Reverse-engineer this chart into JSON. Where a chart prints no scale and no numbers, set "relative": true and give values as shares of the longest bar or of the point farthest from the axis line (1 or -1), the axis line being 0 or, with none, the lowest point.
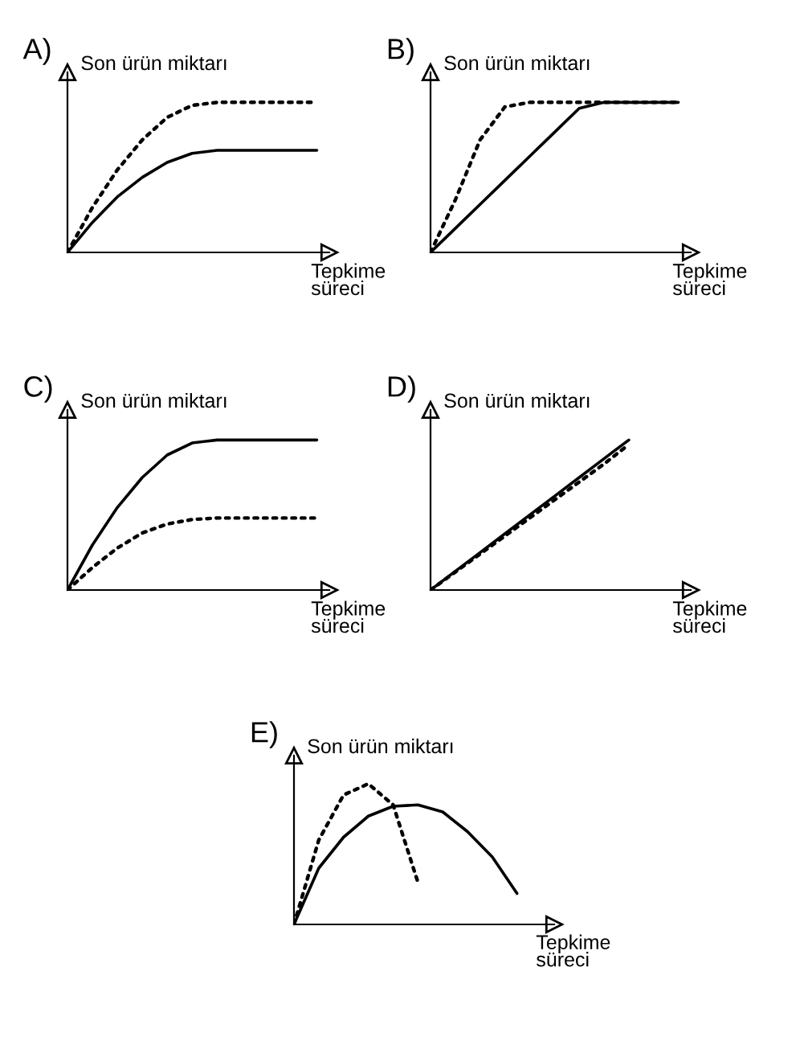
{
  "chart_data": [
    {
      "type": "line",
      "title": "A)",
      "ylabel": "Son ürün miktarı",
      "xlabel": "Tepkime\nsüreci",
      "relative": true,
      "grid": false,
      "legend": false,
      "marker": "none",
      "categories": [
        null,
        null,
        null,
        null,
        null,
        null,
        null,
        null,
        null,
        null,
        null
      ],
      "series": [
        {
          "color": "#000000",
          "line_style": "solid",
          "values": [
            0,
            0.2,
            0.37,
            0.5,
            0.6,
            0.66,
            0.68,
            0.68,
            0.68,
            0.68,
            0.68
          ]
        },
        {
          "color": "#000000",
          "line_style": "dotted",
          "values": [
            0,
            0.3,
            0.55,
            0.75,
            0.9,
            0.98,
            1,
            1,
            1,
            1,
            1
          ]
        }
      ]
    },
    {
      "type": "line",
      "title": "B)",
      "ylabel": "Son ürün miktarı",
      "xlabel": "Tepkime\nsüreci",
      "relative": true,
      "grid": false,
      "legend": false,
      "marker": "none",
      "categories": [
        null,
        null,
        null,
        null,
        null,
        null,
        null,
        null,
        null,
        null,
        null
      ],
      "series": [
        {
          "color": "#000000",
          "line_style": "solid",
          "values": [
            0,
            0.16,
            0.32,
            0.48,
            0.64,
            0.8,
            0.96,
            1,
            1,
            1,
            1
          ]
        },
        {
          "color": "#000000",
          "line_style": "dotted",
          "values": [
            0,
            0.35,
            0.75,
            0.97,
            1,
            1,
            1,
            1,
            1,
            1,
            1
          ]
        }
      ]
    },
    {
      "type": "line",
      "title": "C)",
      "ylabel": "Son ürün miktarı",
      "xlabel": "Tepkime\nsüreci",
      "relative": true,
      "grid": false,
      "legend": false,
      "marker": "none",
      "categories": [
        null,
        null,
        null,
        null,
        null,
        null,
        null,
        null,
        null,
        null,
        null
      ],
      "series": [
        {
          "color": "#000000",
          "line_style": "solid",
          "values": [
            0,
            0.3,
            0.55,
            0.75,
            0.9,
            0.98,
            1,
            1,
            1,
            1,
            1
          ]
        },
        {
          "color": "#000000",
          "line_style": "dotted",
          "values": [
            0,
            0.15,
            0.28,
            0.38,
            0.44,
            0.47,
            0.48,
            0.48,
            0.48,
            0.48,
            0.48
          ]
        }
      ]
    },
    {
      "type": "line",
      "title": "D)",
      "ylabel": "Son ürün miktarı",
      "xlabel": "Tepkime\nsüreci",
      "relative": true,
      "grid": false,
      "legend": false,
      "marker": "none",
      "categories": [
        null,
        null,
        null,
        null,
        null,
        null,
        null,
        null,
        null,
        null,
        null
      ],
      "series": [
        {
          "color": "#000000",
          "line_style": "solid",
          "values": [
            0,
            0.125,
            0.25,
            0.375,
            0.5,
            0.625,
            0.75,
            0.875,
            1,
            null,
            null
          ]
        },
        {
          "color": "#000000",
          "line_style": "dotted",
          "values": [
            0,
            0.12,
            0.24,
            0.36,
            0.48,
            0.6,
            0.72,
            0.84,
            0.97,
            null,
            null
          ]
        }
      ]
    },
    {
      "type": "line",
      "title": "E)",
      "ylabel": "Son ürün miktarı",
      "xlabel": "Tepkime\nsüreci",
      "relative": true,
      "grid": false,
      "legend": false,
      "marker": "none",
      "categories": [
        null,
        null,
        null,
        null,
        null,
        null,
        null,
        null,
        null,
        null,
        null
      ],
      "series": [
        {
          "color": "#000000",
          "line_style": "solid",
          "values": [
            0,
            0.4,
            0.62,
            0.77,
            0.84,
            0.85,
            0.8,
            0.66,
            0.48,
            0.22,
            null
          ]
        },
        {
          "color": "#000000",
          "line_style": "dotted",
          "values": [
            0,
            0.6,
            0.92,
            1,
            0.85,
            0.3,
            null,
            null,
            null,
            null,
            null
          ]
        }
      ]
    }
  ]
}
